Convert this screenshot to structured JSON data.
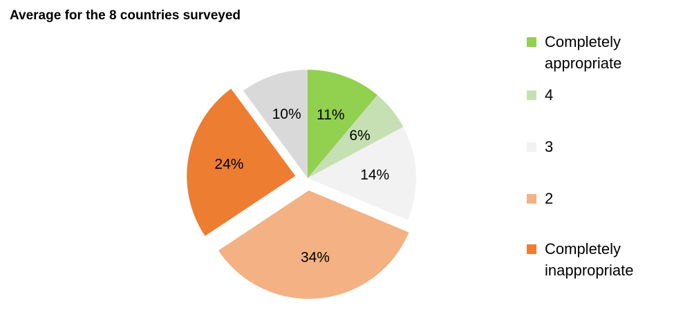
{
  "chart_data": {
    "type": "pie",
    "title": "Average for the 8 countries surveyed",
    "slices": [
      {
        "label": "Completely appropriate",
        "value": 11,
        "label_text": "11%",
        "color": "#92d050",
        "exploded": false
      },
      {
        "label": "4",
        "value": 6,
        "label_text": "6%",
        "color": "#c6e0b4",
        "exploded": false
      },
      {
        "label": "3",
        "value": 14,
        "label_text": "14%",
        "color": "#f2f2f2",
        "exploded": false
      },
      {
        "label": "2",
        "value": 34,
        "label_text": "34%",
        "color": "#f4b183",
        "exploded": true
      },
      {
        "label": "Completely inappropriate",
        "value": 24,
        "label_text": "24%",
        "color": "#ed7d31",
        "exploded": true
      },
      {
        "label": "",
        "value": 10,
        "label_text": "10%",
        "color": "#d9d9d9",
        "exploded": false
      }
    ],
    "legend": {
      "position": "right",
      "items": [
        {
          "label_lines": [
            "Completely",
            "appropriate"
          ],
          "color": "#92d050"
        },
        {
          "label_lines": [
            "4"
          ],
          "color": "#c6e0b4"
        },
        {
          "label_lines": [
            "3"
          ],
          "color": "#f2f2f2"
        },
        {
          "label_lines": [
            "2"
          ],
          "color": "#f4b183"
        },
        {
          "label_lines": [
            "Completely",
            "inappropriate"
          ],
          "color": "#ed7d31"
        }
      ]
    }
  }
}
